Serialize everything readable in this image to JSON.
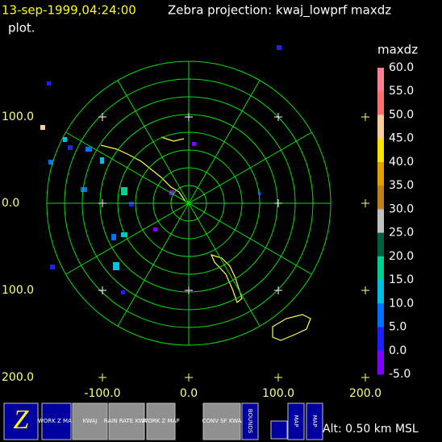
{
  "header": {
    "time": "13-sep-1999,04:24:00",
    "title": "Zebra projection: kwaj_lowprf maxdz",
    "title_cont": "plot."
  },
  "plot": {
    "x_labels": [
      "-100.0",
      "0.0",
      "100.0",
      "200.0"
    ],
    "y_labels": [
      "100.0",
      "0.0",
      "100.0",
      "200.0"
    ]
  },
  "colorbar": {
    "title": "maxdz",
    "labels": [
      "60.0",
      "55.0",
      "50.0",
      "45.0",
      "40.0",
      "35.0",
      "30.0",
      "25.0",
      "20.0",
      "15.0",
      "10.0",
      "5.0",
      "0.0",
      "-5.0"
    ],
    "colors": [
      "#ff8090",
      "#ff7070",
      "#ffcc99",
      "#ffe000",
      "#e0a000",
      "#c08020",
      "#c0c0c0",
      "#006040",
      "#00d090",
      "#00c0e0",
      "#0070ff",
      "#2020ff",
      "#8000ff"
    ]
  },
  "toolbar": {
    "buttons": [
      {
        "label": "WORK Z MAP"
      },
      {
        "label": "KWAJ"
      },
      {
        "label": "RAIN RATE KWAJ"
      },
      {
        "label": "WORK Z MAP"
      },
      {
        "label": "CONV SF KWA"
      },
      {
        "label": "BOUNDS"
      },
      {
        "label": "MAP"
      },
      {
        "label": "MAP"
      }
    ]
  },
  "status": "Alt: 0.50 km MSL"
}
